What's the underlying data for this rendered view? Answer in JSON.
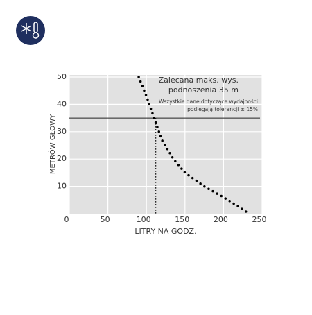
{
  "chart_data": {
    "type": "line",
    "x_label": "LITRY NA GODZ.",
    "y_label": "METRÓW GŁOWY",
    "annotation_title": [
      "Zalecana maks. wys.",
      "podnoszenia 35 m"
    ],
    "annotation_note": [
      "Wszystkie dane dotyczące wydajności",
      "podlegają tolerancji ± 15%"
    ],
    "x": [
      90,
      100,
      110,
      120,
      135,
      150,
      175,
      200,
      220,
      233
    ],
    "values": [
      50,
      43,
      35,
      27,
      20,
      15,
      10,
      6,
      2.5,
      0
    ],
    "color": "#000000",
    "hline": 35,
    "vline": 112,
    "xlim": [
      0,
      250
    ],
    "ylim": [
      0,
      50
    ],
    "xticks": [
      0,
      50,
      100,
      150,
      200,
      250
    ],
    "yticks": [
      10,
      20,
      30,
      40,
      50
    ],
    "grid": true
  }
}
